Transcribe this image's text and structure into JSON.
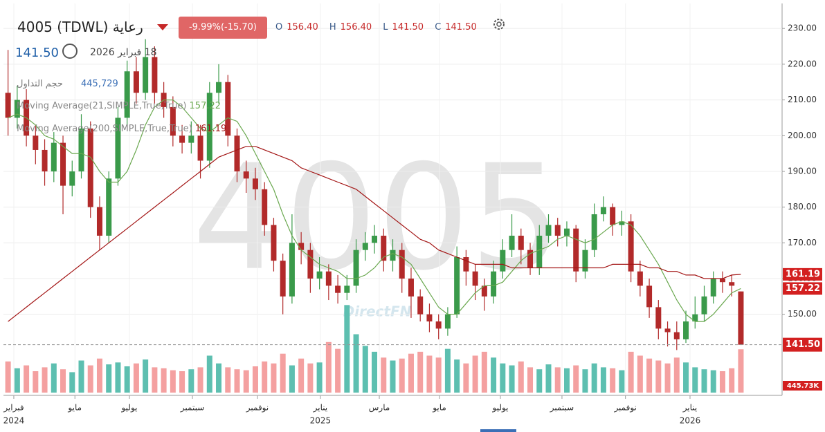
{
  "header": {
    "symbol": "4005 (TDWL) رعاية",
    "change": "-9.99%(-15.70)",
    "ohlc": [
      {
        "k": "O",
        "v": "156.40"
      },
      {
        "k": "H",
        "v": "156.40"
      },
      {
        "k": "L",
        "v": "141.50"
      },
      {
        "k": "C",
        "v": "141.50"
      }
    ],
    "date": "18 فبراير 2026",
    "volume_label": "حجم التداول",
    "volume_value": "445,729"
  },
  "watermark": "4005",
  "brand": "DirectFN",
  "chart_data": {
    "type": "candlestick",
    "x": [
      0,
      1,
      2,
      3,
      4,
      5,
      6,
      7,
      8,
      9,
      10,
      11,
      12,
      13,
      14,
      15,
      16,
      17,
      18,
      19,
      20,
      21,
      22,
      23,
      24,
      25,
      26,
      27,
      28,
      29,
      30,
      31,
      32,
      33,
      34,
      35,
      36,
      37,
      38,
      39,
      40,
      41,
      42,
      43,
      44,
      45,
      46,
      47,
      48,
      49,
      50,
      51,
      52,
      53,
      54,
      55,
      56,
      57,
      58,
      59,
      60,
      61,
      62,
      63,
      64,
      65,
      66,
      67,
      68,
      69,
      70,
      71,
      72,
      73,
      74,
      75,
      76,
      77,
      78,
      79,
      80
    ],
    "open": [
      212,
      205,
      210,
      200,
      196,
      190,
      198,
      186,
      190,
      202,
      180,
      172,
      188,
      205,
      218,
      212,
      222,
      212,
      208,
      200,
      198,
      200,
      193,
      212,
      215,
      200,
      190,
      188,
      185,
      175,
      165,
      155,
      170,
      168,
      160,
      162,
      158,
      156,
      158,
      168,
      170,
      172,
      165,
      168,
      160,
      155,
      150,
      148,
      146,
      150,
      166,
      162,
      158,
      155,
      162,
      168,
      172,
      168,
      163,
      172,
      175,
      172,
      174,
      162,
      168,
      178,
      180,
      175,
      176,
      162,
      158,
      152,
      146,
      145,
      143,
      148,
      150,
      155,
      160,
      159,
      156.4
    ],
    "high": [
      224,
      214,
      213,
      203,
      199,
      201,
      200,
      193,
      206,
      204,
      183,
      190,
      208,
      221,
      222,
      227,
      225,
      215,
      211,
      203,
      204,
      203,
      215,
      220,
      217,
      202,
      193,
      191,
      187,
      177,
      167,
      178,
      173,
      170,
      166,
      164,
      161,
      161,
      171,
      173,
      175,
      174,
      171,
      170,
      163,
      157,
      153,
      150,
      152,
      169,
      168,
      164,
      160,
      165,
      171,
      178,
      174,
      170,
      175,
      178,
      177,
      176,
      175,
      171,
      181,
      183,
      181,
      179,
      178,
      165,
      160,
      154,
      148,
      148,
      151,
      155,
      158,
      162,
      162,
      161,
      156.4
    ],
    "low": [
      200,
      202,
      197,
      192,
      186,
      187,
      178,
      183,
      188,
      177,
      168,
      170,
      186,
      203,
      209,
      210,
      209,
      205,
      197,
      195,
      195,
      188,
      191,
      209,
      197,
      187,
      184,
      182,
      172,
      162,
      150,
      153,
      164,
      156,
      157,
      154,
      153,
      154,
      156,
      165,
      167,
      162,
      162,
      156,
      149,
      148,
      145,
      143,
      144,
      149,
      158,
      154,
      151,
      153,
      160,
      166,
      164,
      161,
      161,
      170,
      169,
      169,
      159,
      160,
      166,
      176,
      172,
      172,
      159,
      155,
      149,
      143,
      141,
      140,
      142,
      146,
      148,
      153,
      156,
      155,
      141.5
    ],
    "close": [
      205,
      210,
      200,
      196,
      190,
      198,
      186,
      190,
      202,
      180,
      172,
      188,
      205,
      218,
      212,
      222,
      212,
      208,
      200,
      198,
      200,
      193,
      212,
      215,
      200,
      190,
      188,
      185,
      175,
      165,
      155,
      170,
      168,
      160,
      162,
      158,
      156,
      158,
      168,
      170,
      172,
      165,
      168,
      160,
      155,
      150,
      148,
      146,
      150,
      166,
      162,
      158,
      155,
      162,
      168,
      172,
      168,
      163,
      172,
      175,
      172,
      174,
      162,
      168,
      178,
      180,
      175,
      176,
      162,
      158,
      152,
      146,
      145,
      143,
      148,
      150,
      155,
      160,
      159,
      158,
      141.5
    ],
    "colors": {
      "up": "#3a9a4a",
      "down": "#b22a2a"
    },
    "xlim": [
      -0.5,
      84.5
    ],
    "ylim": [
      127.7,
      237
    ],
    "yticks": [
      {
        "value": 150,
        "label": "150.00"
      },
      {
        "value": 160,
        "label": "160.00"
      },
      {
        "value": 170,
        "label": "170.00"
      },
      {
        "value": 180,
        "label": "180.00"
      },
      {
        "value": 190,
        "label": "190.00"
      },
      {
        "value": 200,
        "label": "200.00"
      },
      {
        "value": 210,
        "label": "210.00"
      },
      {
        "value": 220,
        "label": "220.00"
      },
      {
        "value": 230,
        "label": "230.00"
      }
    ],
    "xticks": [
      {
        "value": 0.63,
        "label": "فبراير"
      },
      {
        "value": 7.3,
        "label": "مايو"
      },
      {
        "value": 13.25,
        "label": "يوليو"
      },
      {
        "value": 20.13,
        "label": "سبتمبر"
      },
      {
        "value": 27.23,
        "label": "نوفمبر"
      },
      {
        "value": 34.1,
        "label": "يناير"
      },
      {
        "value": 40.53,
        "label": "مارس"
      },
      {
        "value": 47.1,
        "label": "مايو"
      },
      {
        "value": 53.75,
        "label": "يوليو"
      },
      {
        "value": 60.47,
        "label": "سبتمبر"
      },
      {
        "value": 67.4,
        "label": "نوفمبر"
      },
      {
        "value": 74.45,
        "label": "يناير"
      }
    ],
    "xyears": [
      {
        "value": 0.63,
        "label": "2024"
      },
      {
        "value": 34.1,
        "label": "2025"
      },
      {
        "value": 74.45,
        "label": "2026"
      }
    ],
    "grid": true,
    "last_price": 141.5,
    "last_price_label": "141.50",
    "volume": {
      "values": [
        320000,
        250000,
        280000,
        220000,
        260000,
        300000,
        240000,
        210000,
        330000,
        280000,
        350000,
        290000,
        310000,
        270000,
        300000,
        340000,
        260000,
        250000,
        230000,
        220000,
        240000,
        260000,
        380000,
        300000,
        260000,
        240000,
        230000,
        270000,
        320000,
        300000,
        400000,
        280000,
        350000,
        300000,
        310000,
        520000,
        450000,
        900000,
        600000,
        480000,
        420000,
        360000,
        330000,
        350000,
        400000,
        420000,
        380000,
        360000,
        450000,
        340000,
        300000,
        380000,
        420000,
        360000,
        300000,
        280000,
        320000,
        260000,
        240000,
        290000,
        260000,
        250000,
        280000,
        240000,
        300000,
        260000,
        250000,
        230000,
        420000,
        380000,
        350000,
        330000,
        300000,
        360000,
        310000,
        260000,
        240000,
        230000,
        220000,
        250000,
        445729
      ],
      "ylim": [
        0,
        4000000
      ],
      "current_label": "445.73K",
      "up_color": "#5dbfb0",
      "down_color": "#f4a0a0"
    },
    "series": [
      {
        "name": "Moving Average(21,SIMPLE,True,True)",
        "color": "#6aa84f",
        "current_label": "157.22",
        "values": [
          205,
          206,
          205,
          203,
          200,
          199,
          197,
          195,
          195,
          194,
          190,
          187,
          187,
          190,
          196,
          203,
          208,
          210,
          210,
          208,
          205,
          202,
          201,
          203,
          205,
          204,
          200,
          195,
          190,
          185,
          178,
          172,
          168,
          166,
          164,
          163,
          162,
          160,
          160,
          161,
          163,
          166,
          167,
          166,
          164,
          160,
          156,
          152,
          150,
          150,
          153,
          156,
          158,
          158,
          159,
          162,
          165,
          167,
          168,
          169,
          171,
          172,
          171,
          170,
          171,
          173,
          175,
          176,
          175,
          172,
          168,
          164,
          159,
          154,
          150,
          148,
          148,
          150,
          153,
          156,
          157.22
        ]
      },
      {
        "name": "Moving Average(200,SIMPLE,True,True)",
        "color": "#a31515",
        "current_label": "161.19",
        "values": [
          148,
          150,
          152,
          154,
          156,
          158,
          160,
          162,
          164,
          166,
          168,
          170,
          172,
          174,
          176,
          178,
          180,
          182,
          184,
          186,
          188,
          190,
          192,
          194,
          195,
          196,
          197,
          197,
          196,
          195,
          194,
          193,
          191,
          190,
          189,
          188,
          187,
          186,
          185,
          183,
          181,
          179,
          177,
          175,
          173,
          171,
          170,
          168,
          167,
          166,
          165,
          164,
          164,
          164,
          164,
          163,
          163,
          163,
          163,
          163,
          163,
          163,
          163,
          163,
          163,
          163,
          164,
          164,
          164,
          164,
          163,
          163,
          162,
          162,
          161,
          161,
          160,
          160,
          160,
          161,
          161.19
        ]
      }
    ]
  }
}
